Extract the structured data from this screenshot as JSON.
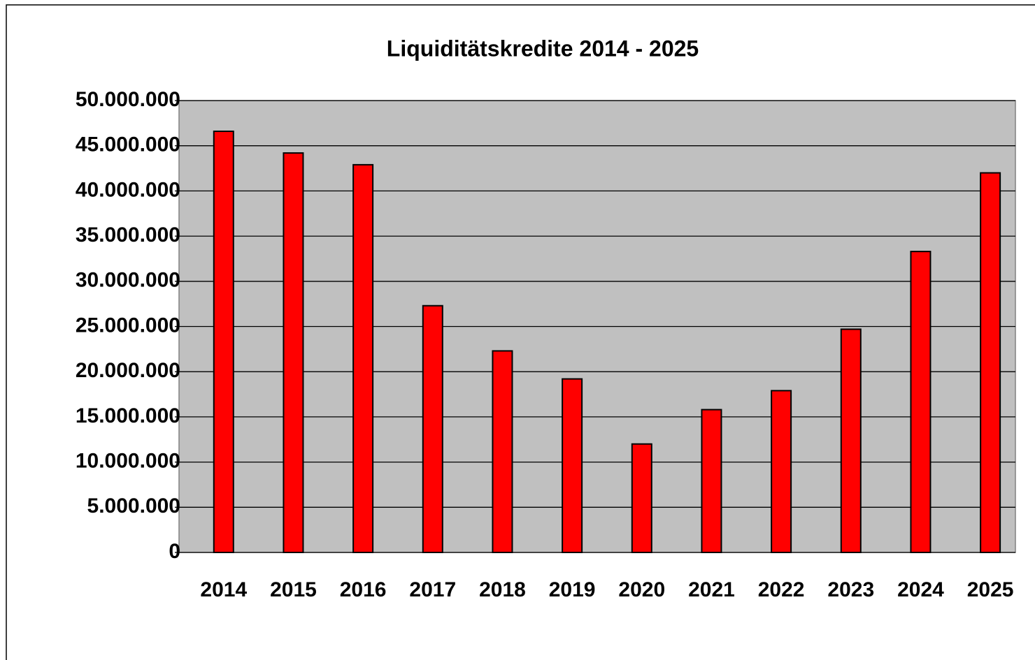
{
  "chart_data": {
    "type": "bar",
    "title": "Liquiditätskredite 2014 - 2025",
    "categories": [
      "2014",
      "2015",
      "2016",
      "2017",
      "2018",
      "2019",
      "2020",
      "2021",
      "2022",
      "2023",
      "2024",
      "2025"
    ],
    "values": [
      46600000,
      44200000,
      42900000,
      27300000,
      22300000,
      19200000,
      12000000,
      15800000,
      17900000,
      24700000,
      33300000,
      42000000
    ],
    "color": "#ff0000",
    "ylim": [
      0,
      50000000
    ],
    "yticks": [
      0,
      {
        "value": 5000000,
        "label": "5.000.000"
      },
      {
        "value": 10000000,
        "label": "10.000.000"
      },
      {
        "value": 15000000,
        "label": "15.000.000"
      },
      {
        "value": 20000000,
        "label": "20.000.000"
      },
      {
        "value": 25000000,
        "label": "25.000.000"
      },
      {
        "value": 30000000,
        "label": "30.000.000"
      },
      {
        "value": 35000000,
        "label": "35.000.000"
      },
      {
        "value": 40000000,
        "label": "40.000.000"
      },
      {
        "value": 45000000,
        "label": "45.000.000"
      },
      {
        "value": 50000000,
        "label": "50.000.000"
      }
    ],
    "grid": true
  }
}
